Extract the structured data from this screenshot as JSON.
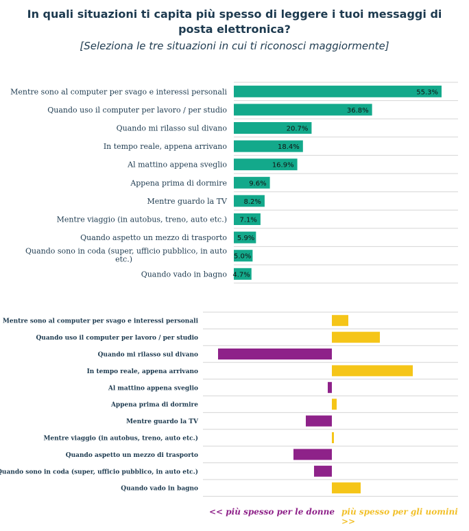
{
  "title": "In quali situazioni ti capita più spesso di leggere i tuoi messaggi di posta elettronica?",
  "subtitle": "[Seleziona le tre situazioni in cui ti riconosci maggiormente]",
  "colors": {
    "top_bar": "#13a98b",
    "women": "#8e2289",
    "men": "#f5c518",
    "grid": "#d5d5d5",
    "label": "#1d3a4f"
  },
  "legend": {
    "women": "<< più spesso per le donne",
    "men": "più spesso per gli uomini >>"
  },
  "chart_data": [
    {
      "type": "bar",
      "orientation": "horizontal",
      "categories": [
        "Mentre sono al computer per svago e interessi personali",
        "Quando uso il computer per lavoro / per studio",
        "Quando mi rilasso sul divano",
        "In tempo reale, appena arrivano",
        "Al mattino appena sveglio",
        "Appena prima di dormire",
        "Mentre guardo la TV",
        "Mentre viaggio (in autobus, treno, auto etc.)",
        "Quando aspetto un mezzo di trasporto",
        "Quando sono in coda (super, ufficio pubblico, in auto etc.)",
        "Quando vado in bagno"
      ],
      "values": [
        55.3,
        36.8,
        20.7,
        18.4,
        16.9,
        9.6,
        8.2,
        7.1,
        5.9,
        5.0,
        4.7
      ],
      "value_labels": [
        "55.3%",
        "36.8%",
        "20.7%",
        "18.4%",
        "16.9%",
        "9.6%",
        "8.2%",
        "7.1%",
        "5.9%",
        "5.0%",
        "4.7%"
      ],
      "xlim": [
        0,
        60
      ],
      "grid": true
    },
    {
      "type": "bar",
      "orientation": "horizontal",
      "diverging": true,
      "categories": [
        "Mentre sono al computer per svago e interessi personali",
        "Quando uso il computer per lavoro / per studio",
        "Quando mi rilasso sul divano",
        "In tempo reale, appena arrivano",
        "Al mattino appena sveglio",
        "Appena prima di dormire",
        "Mentre guardo la TV",
        "Mentre viaggio (in autobus, treno, auto etc.)",
        "Quando aspetto un mezzo di trasporto",
        "Quando sono in coda (super, ufficio pubblico, in auto etc.)",
        "Quando vado in bagno"
      ],
      "values": [
        2.4,
        7.0,
        -16.6,
        11.8,
        -0.6,
        0.7,
        -3.8,
        0.3,
        -5.6,
        -2.6,
        4.2
      ],
      "xlim": [
        -20,
        20
      ],
      "grid": true
    }
  ]
}
